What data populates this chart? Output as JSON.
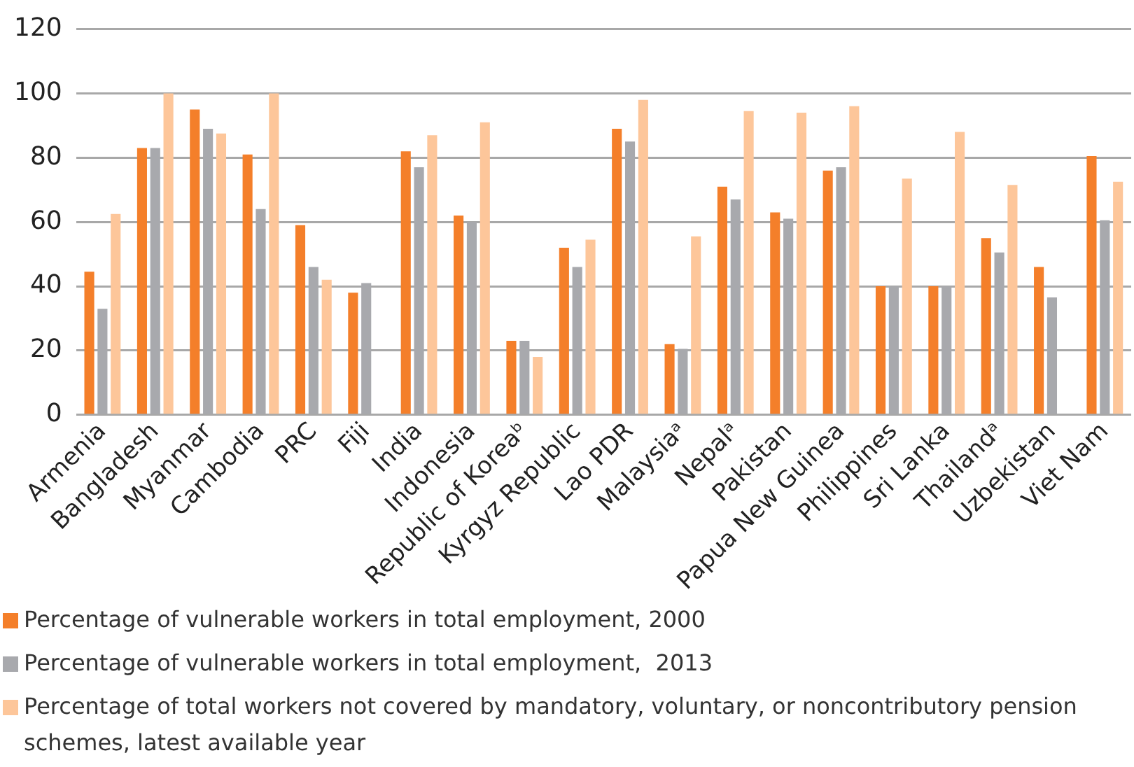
{
  "chart_data": {
    "type": "bar",
    "categories": [
      "Armenia",
      "Bangladesh",
      "Myanmar",
      "Cambodia",
      "PRC",
      "Fiji",
      "India",
      "Indonesia",
      "Republic of Koreaᵇ",
      "Kyrgyz Republic",
      "Lao PDR",
      "Malaysiaᵃ",
      "Nepalᵃ",
      "Pakistan",
      "Papua New Guinea",
      "Philippines",
      "Sri Lanka",
      "Thailandᵃ",
      "Uzbekistan",
      "Viet Nam"
    ],
    "series": [
      {
        "name": "Percentage of vulnerable workers in total employment, 2000",
        "color": "#f47f2a",
        "values": [
          44.5,
          83,
          95,
          81,
          59,
          38,
          82,
          62,
          23,
          52,
          89,
          22,
          71,
          63,
          76,
          40,
          40,
          55,
          46,
          80.5
        ]
      },
      {
        "name": "Percentage of vulnerable workers in total employment,  2013",
        "color": "#a8a9ad",
        "values": [
          33,
          83,
          89,
          64,
          46,
          41,
          77,
          60,
          23,
          46,
          85,
          20.5,
          67,
          61,
          77,
          40,
          40,
          50.5,
          36.5,
          60.5
        ]
      },
      {
        "name": "Percentage of total workers not covered by mandatory, voluntary, or noncontributory pension schemes, latest available year",
        "color": "#fdc69a",
        "values": [
          62.5,
          100,
          87.5,
          100,
          42,
          null,
          87,
          91,
          18,
          54.5,
          98,
          55.5,
          94.5,
          94,
          96,
          73.5,
          88,
          71.5,
          null,
          72.5
        ]
      }
    ],
    "ylim": [
      0,
      120
    ],
    "yticks": [
      0,
      20,
      40,
      60,
      80,
      100,
      120
    ],
    "grid": "y",
    "legend": "bottom"
  }
}
